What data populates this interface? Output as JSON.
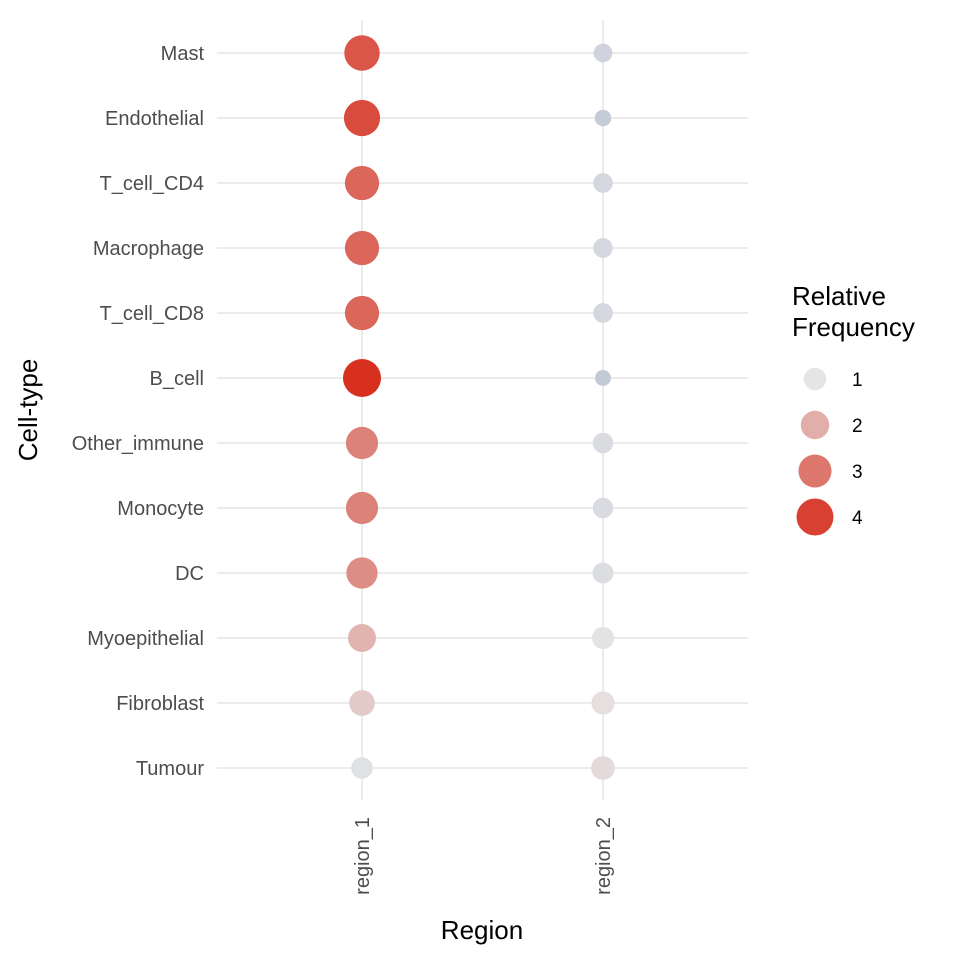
{
  "chart_data": {
    "type": "scatter",
    "title": "",
    "xlabel": "Region",
    "ylabel": "Cell-type",
    "x_categories": [
      "region_1",
      "region_2"
    ],
    "y_categories": [
      "Mast",
      "Endothelial",
      "T_cell_CD4",
      "Macrophage",
      "T_cell_CD8",
      "B_cell",
      "Other_immune",
      "Monocyte",
      "DC",
      "Myoepithelial",
      "Fibroblast",
      "Tumour"
    ],
    "points": [
      {
        "y": "Mast",
        "x": "region_1",
        "value": 3.6
      },
      {
        "y": "Endothelial",
        "x": "region_1",
        "value": 3.8
      },
      {
        "y": "T_cell_CD4",
        "x": "region_1",
        "value": 3.3
      },
      {
        "y": "Macrophage",
        "x": "region_1",
        "value": 3.3
      },
      {
        "y": "T_cell_CD8",
        "x": "region_1",
        "value": 3.3
      },
      {
        "y": "B_cell",
        "x": "region_1",
        "value": 4.3
      },
      {
        "y": "Other_immune",
        "x": "region_1",
        "value": 2.8
      },
      {
        "y": "Monocyte",
        "x": "region_1",
        "value": 2.8
      },
      {
        "y": "DC",
        "x": "region_1",
        "value": 2.6
      },
      {
        "y": "Myoepithelial",
        "x": "region_1",
        "value": 1.9
      },
      {
        "y": "Fibroblast",
        "x": "region_1",
        "value": 1.5
      },
      {
        "y": "Tumour",
        "x": "region_1",
        "value": 0.9
      },
      {
        "y": "Mast",
        "x": "region_2",
        "value": 0.55
      },
      {
        "y": "Endothelial",
        "x": "region_2",
        "value": 0.35
      },
      {
        "y": "T_cell_CD4",
        "x": "region_2",
        "value": 0.65
      },
      {
        "y": "Macrophage",
        "x": "region_2",
        "value": 0.65
      },
      {
        "y": "T_cell_CD8",
        "x": "region_2",
        "value": 0.65
      },
      {
        "y": "B_cell",
        "x": "region_2",
        "value": 0.3
      },
      {
        "y": "Other_immune",
        "x": "region_2",
        "value": 0.75
      },
      {
        "y": "Monocyte",
        "x": "region_2",
        "value": 0.75
      },
      {
        "y": "DC",
        "x": "region_2",
        "value": 0.8
      },
      {
        "y": "Myoepithelial",
        "x": "region_2",
        "value": 0.95
      },
      {
        "y": "Fibroblast",
        "x": "region_2",
        "value": 1.1
      },
      {
        "y": "Tumour",
        "x": "region_2",
        "value": 1.2
      }
    ],
    "legend": {
      "title_lines": [
        "Relative",
        "Frequency"
      ],
      "entries": [
        {
          "label": "1",
          "value": 1
        },
        {
          "label": "2",
          "value": 2
        },
        {
          "label": "3",
          "value": 3
        },
        {
          "label": "4",
          "value": 4
        }
      ],
      "placement": "right"
    },
    "color_scale": {
      "low": "#bfc5d6",
      "mid": "#e5e5e5",
      "high": "#d7301f",
      "midpoint": 1,
      "max": 4.3
    },
    "grid": true
  }
}
